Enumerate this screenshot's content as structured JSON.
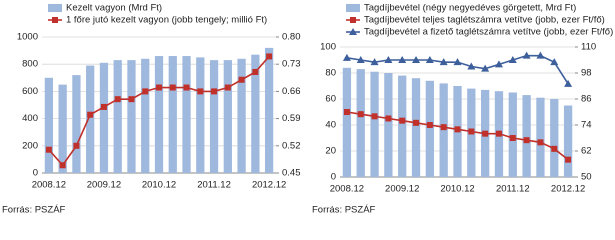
{
  "chart_data": [
    {
      "type": "bar-line",
      "categories": [
        "2008.12",
        null,
        null,
        null,
        "2009.12",
        null,
        null,
        null,
        "2010.12",
        null,
        null,
        null,
        "2011.12",
        null,
        null,
        null,
        "2012.12"
      ],
      "series": [
        {
          "name": "Kezelt vagyon (Mrd Ft)",
          "kind": "bar",
          "color": "#9fb8dd",
          "values": [
            700,
            650,
            720,
            790,
            810,
            830,
            830,
            840,
            860,
            860,
            860,
            850,
            830,
            830,
            840,
            870,
            920
          ]
        },
        {
          "name": "1 főre jutó kezelt vagyon (jobb tengely; millió Ft)",
          "kind": "line",
          "axis": "y2",
          "marker": "square",
          "color": "#c0312b",
          "values": [
            0.51,
            0.47,
            0.52,
            0.6,
            0.62,
            0.64,
            0.64,
            0.66,
            0.67,
            0.67,
            0.67,
            0.66,
            0.66,
            0.67,
            0.69,
            0.71,
            0.75
          ]
        }
      ],
      "ylim": [
        0,
        1000
      ],
      "yticks": [
        0,
        200,
        400,
        600,
        800,
        1000
      ],
      "y2lim": [
        0.45,
        0.8
      ],
      "y2ticks": [
        0.45,
        0.52,
        0.59,
        0.66,
        0.73,
        {
          "value": 0.8,
          "label": "0.80"
        }
      ],
      "grid": true,
      "source": "Forrás: PSZÁF"
    },
    {
      "type": "bar-line",
      "categories": [
        "2008.12",
        null,
        null,
        null,
        "2009.12",
        null,
        null,
        null,
        "2010.12",
        null,
        null,
        null,
        "2011.12",
        null,
        null,
        null,
        "2012.12"
      ],
      "series": [
        {
          "name": "Tagdíjbevétel (négy negyedéves görgetett, Mrd Ft)",
          "kind": "bar",
          "color": "#9fb8dd",
          "values": [
            84,
            83,
            81,
            80,
            78,
            76,
            74,
            72,
            70,
            68,
            67,
            66,
            65,
            63,
            61,
            60,
            55
          ]
        },
        {
          "name": "Tagdíjbevétel teljes taglétszámra vetítve (jobb, ezer Ft/fő)",
          "kind": "line",
          "axis": "y2",
          "marker": "square",
          "color": "#c0312b",
          "values": [
            80,
            79,
            78,
            77,
            76,
            75,
            74,
            73,
            72,
            71,
            70,
            70,
            68,
            67,
            66,
            63,
            58
          ]
        },
        {
          "name": "Tagdíjbevétel a fizető taglétszámra vetítve (jobb, ezer Ft/fő)",
          "kind": "line",
          "axis": "y2",
          "marker": "triangle",
          "color": "#3d5f9c",
          "values": [
            105,
            104,
            103,
            104,
            104,
            104,
            104,
            103,
            103,
            101,
            100,
            102,
            104,
            106,
            106,
            103,
            93
          ]
        }
      ],
      "ylim": [
        0,
        100
      ],
      "yticks": [
        0,
        20,
        40,
        60,
        80,
        100
      ],
      "y2lim": [
        50,
        110
      ],
      "y2ticks": [
        50,
        62,
        74,
        86,
        98,
        110
      ],
      "grid": true,
      "source": "Forrás: PSZÁF"
    }
  ]
}
